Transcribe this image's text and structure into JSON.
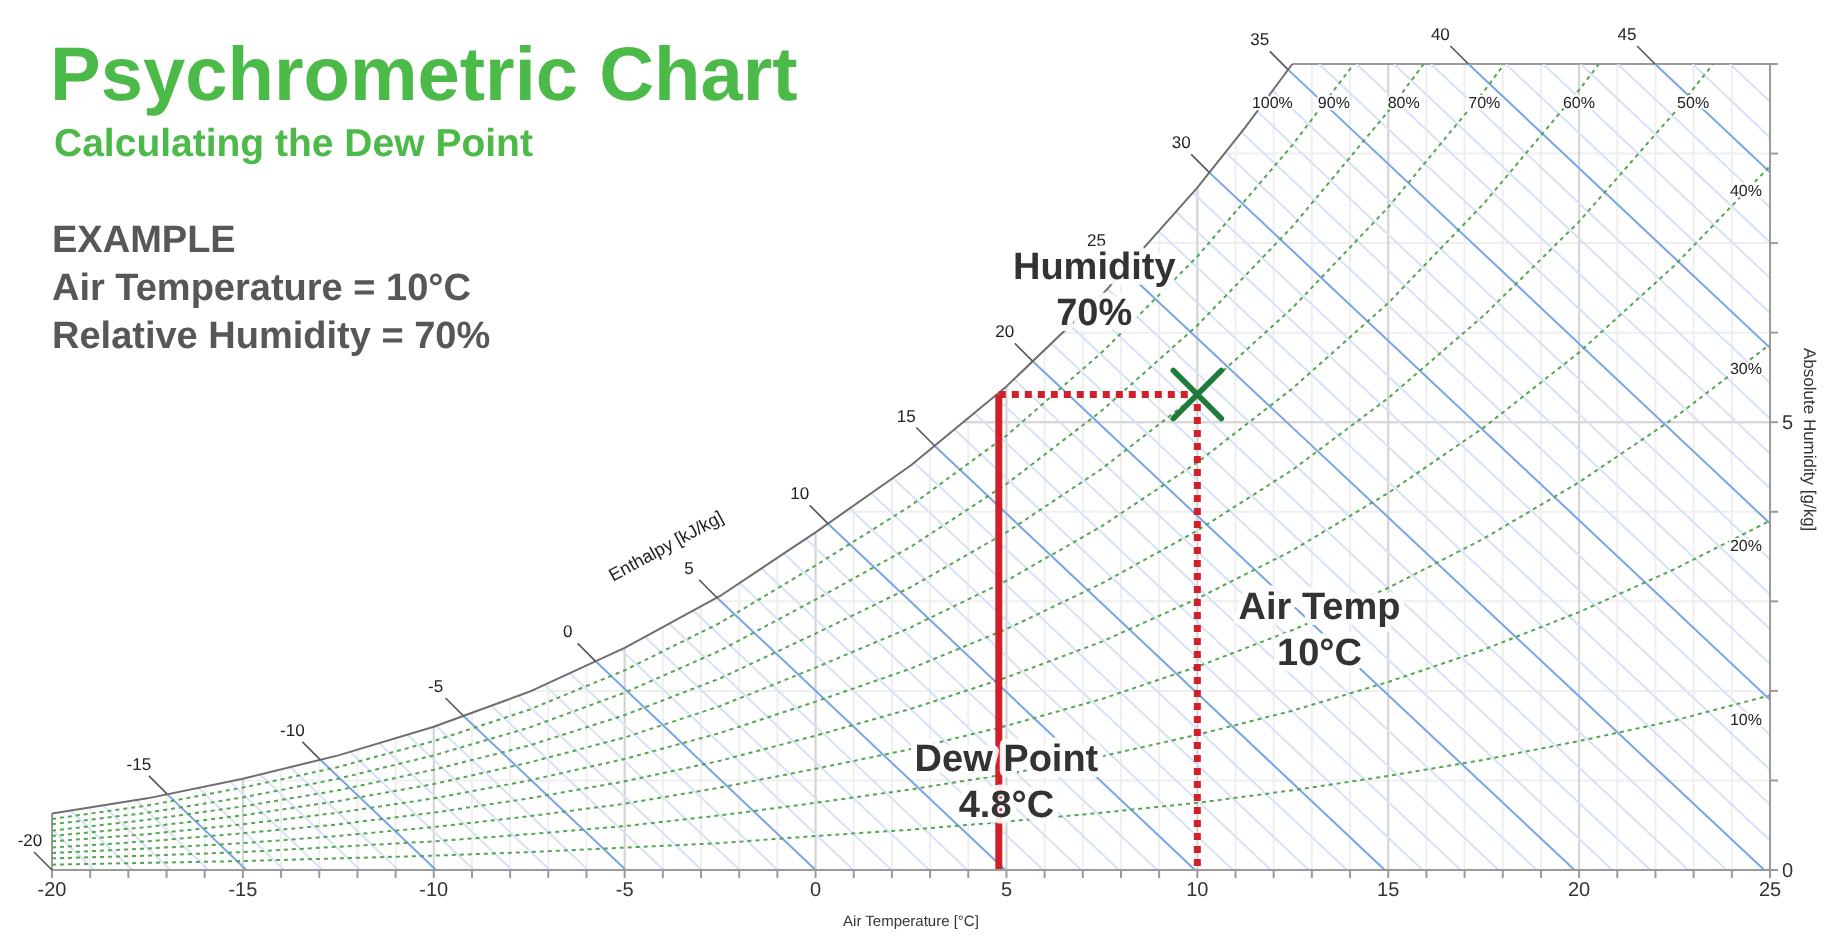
{
  "chart_data": {
    "type": "line",
    "title": "Psychrometric Chart",
    "subtitle": "Calculating the Dew Point",
    "xlabel": "Air Temperature [°C]",
    "ylabel": "Absolute Humidity [g/kg]",
    "xlim": [
      -20,
      25
    ],
    "ylim": [
      0,
      9
    ],
    "xticks": [
      -20,
      {
        "value": -19,
        "label": null
      },
      {
        "value": -18,
        "label": null
      },
      {
        "value": -17,
        "label": null
      },
      {
        "value": -16,
        "label": null
      },
      -15,
      {
        "value": -14,
        "label": null
      },
      {
        "value": -13,
        "label": null
      },
      {
        "value": -12,
        "label": null
      },
      {
        "value": -11,
        "label": null
      },
      -10,
      {
        "value": -9,
        "label": null
      },
      {
        "value": -8,
        "label": null
      },
      {
        "value": -7,
        "label": null
      },
      {
        "value": -6,
        "label": null
      },
      -5,
      {
        "value": -4,
        "label": null
      },
      {
        "value": -3,
        "label": null
      },
      {
        "value": -2,
        "label": null
      },
      {
        "value": -1,
        "label": null
      },
      0,
      {
        "value": 1,
        "label": null
      },
      {
        "value": 2,
        "label": null
      },
      {
        "value": 3,
        "label": null
      },
      {
        "value": 4,
        "label": null
      },
      5,
      {
        "value": 6,
        "label": null
      },
      {
        "value": 7,
        "label": null
      },
      {
        "value": 8,
        "label": null
      },
      {
        "value": 9,
        "label": null
      },
      10,
      {
        "value": 11,
        "label": null
      },
      {
        "value": 12,
        "label": null
      },
      {
        "value": 13,
        "label": null
      },
      {
        "value": 14,
        "label": null
      },
      15,
      {
        "value": 16,
        "label": null
      },
      {
        "value": 17,
        "label": null
      },
      {
        "value": 18,
        "label": null
      },
      {
        "value": 19,
        "label": null
      },
      20,
      {
        "value": 21,
        "label": null
      },
      {
        "value": 22,
        "label": null
      },
      {
        "value": 23,
        "label": null
      },
      {
        "value": 24,
        "label": null
      },
      25
    ],
    "yticks": [
      0,
      {
        "value": 1,
        "label": null
      },
      {
        "value": 2,
        "label": null
      },
      {
        "value": 3,
        "label": null
      },
      {
        "value": 4,
        "label": null
      },
      5,
      {
        "value": 6,
        "label": null
      },
      {
        "value": 7,
        "label": null
      },
      {
        "value": 8,
        "label": null
      },
      {
        "value": 9,
        "label": null
      }
    ],
    "grid": true,
    "annotations": [
      "EXAMPLE\nAir Temperature = 10°C\nRelative Humidity = 70%",
      "Enthalpy [kJ/kg]",
      {
        "text": "Humidity\n70%",
        "x": 7.3,
        "y": 6.5
      },
      {
        "text": "Air Temp\n10°C",
        "x": 13.2,
        "y": 2.7
      },
      {
        "text": "Dew Point\n4.8°C",
        "x": 5.0,
        "y": 1.0
      },
      {
        "text": "-20",
        "x": -20,
        "y": 0
      }
    ],
    "series": [
      {
        "color": "#d6e2f5",
        "x": [
          -20,
          -18.89
        ],
        "values": [
          0.45,
          0
        ]
      },
      {
        "color": "#d6e2f5",
        "x": [
          -19.53,
          -17.89
        ],
        "values": [
          0.67,
          0
        ]
      },
      {
        "color": "#d6e2f5",
        "x": [
          -18.68,
          -16.9
        ],
        "values": [
          0.73,
          0
        ]
      },
      {
        "color": "#d6e2f5",
        "x": [
          -17.83,
          -15.9
        ],
        "values": [
          0.79,
          0
        ]
      },
      {
        "color": "#d6e2f5",
        "x": [
          -16.17,
          -13.92
        ],
        "values": [
          0.92,
          0
        ]
      },
      {
        "color": "#d6e2f5",
        "x": [
          -15.35,
          -12.92
        ],
        "values": [
          0.99,
          0
        ]
      },
      {
        "color": "#d6e2f5",
        "x": [
          -14.55,
          -11.93
        ],
        "values": [
          1.07,
          0
        ]
      },
      {
        "color": "#d6e2f5",
        "x": [
          -13.76,
          -10.93
        ],
        "values": [
          1.15,
          0
        ]
      },
      {
        "color": "#d6e2f5",
        "x": [
          -12.19,
          -8.95
        ],
        "values": [
          1.32,
          0
        ]
      },
      {
        "color": "#d6e2f5",
        "x": [
          -11.44,
          -7.95
        ],
        "values": [
          1.42,
          0
        ]
      },
      {
        "color": "#d6e2f5",
        "x": [
          -10.69,
          -6.96
        ],
        "values": [
          1.51,
          0
        ]
      },
      {
        "color": "#d6e2f5",
        "x": [
          -9.94,
          -5.96
        ],
        "values": [
          1.61,
          0
        ]
      },
      {
        "color": "#d6e2f5",
        "x": [
          -8.51,
          -3.98
        ],
        "values": [
          1.84,
          0
        ]
      },
      {
        "color": "#d6e2f5",
        "x": [
          -7.8,
          -2.98
        ],
        "values": [
          1.95,
          0
        ]
      },
      {
        "color": "#d6e2f5",
        "x": [
          -7.11,
          -1.99
        ],
        "values": [
          2.07,
          0
        ]
      },
      {
        "color": "#d6e2f5",
        "x": [
          -6.44,
          -0.99
        ],
        "values": [
          2.2,
          0
        ]
      },
      {
        "color": "#d6e2f5",
        "x": [
          -5.09,
          0.99
        ],
        "values": [
          2.46,
          0
        ]
      },
      {
        "color": "#d6e2f5",
        "x": [
          -4.46,
          1.99
        ],
        "values": [
          2.6,
          0
        ]
      },
      {
        "color": "#d6e2f5",
        "x": [
          -3.83,
          2.98
        ],
        "values": [
          2.75,
          0
        ]
      },
      {
        "color": "#d6e2f5",
        "x": [
          -3.21,
          3.98
        ],
        "values": [
          2.9,
          0
        ]
      },
      {
        "color": "#d6e2f5",
        "x": [
          -2.0,
          5.96
        ],
        "values": [
          3.21,
          0
        ]
      },
      {
        "color": "#d6e2f5",
        "x": [
          -1.42,
          6.96
        ],
        "values": [
          3.37,
          0
        ]
      },
      {
        "color": "#d6e2f5",
        "x": [
          -0.84,
          7.95
        ],
        "values": [
          3.54,
          0
        ]
      },
      {
        "color": "#d6e2f5",
        "x": [
          -0.26,
          8.95
        ],
        "values": [
          3.7,
          0
        ]
      },
      {
        "color": "#d6e2f5",
        "x": [
          0.89,
          10.93
        ],
        "values": [
          4.04,
          0
        ]
      },
      {
        "color": "#d6e2f5",
        "x": [
          1.45,
          11.93
        ],
        "values": [
          4.21,
          0
        ]
      },
      {
        "color": "#d6e2f5",
        "x": [
          2.02,
          12.92
        ],
        "values": [
          4.38,
          0
        ]
      },
      {
        "color": "#d6e2f5",
        "x": [
          2.58,
          13.92
        ],
        "values": [
          4.55,
          0
        ]
      },
      {
        "color": "#d6e2f5",
        "x": [
          3.64,
          15.9
        ],
        "values": [
          4.92,
          0
        ]
      },
      {
        "color": "#d6e2f5",
        "x": [
          4.17,
          16.9
        ],
        "values": [
          5.1,
          0
        ]
      },
      {
        "color": "#d6e2f5",
        "x": [
          4.69,
          17.89
        ],
        "values": [
          5.29,
          0
        ]
      },
      {
        "color": "#d6e2f5",
        "x": [
          5.2,
          18.89
        ],
        "values": [
          5.48,
          0
        ]
      },
      {
        "color": "#d6e2f5",
        "x": [
          6.18,
          20.87
        ],
        "values": [
          5.88,
          0
        ]
      },
      {
        "color": "#d6e2f5",
        "x": [
          6.67,
          21.87
        ],
        "values": [
          6.08,
          0
        ]
      },
      {
        "color": "#d6e2f5",
        "x": [
          7.16,
          22.86
        ],
        "values": [
          6.28,
          0
        ]
      },
      {
        "color": "#d6e2f5",
        "x": [
          7.64,
          23.86
        ],
        "values": [
          6.49,
          0
        ]
      },
      {
        "color": "#d6e2f5",
        "x": [
          8.54,
          25
        ],
        "values": [
          6.92,
          0.33
        ]
      },
      {
        "color": "#d6e2f5",
        "x": [
          8.99,
          25
        ],
        "values": [
          7.13,
          0.73
        ]
      },
      {
        "color": "#d6e2f5",
        "x": [
          9.44,
          25
        ],
        "values": [
          7.35,
          1.12
        ]
      },
      {
        "color": "#d6e2f5",
        "x": [
          9.89,
          25
        ],
        "values": [
          7.56,
          1.51
        ]
      },
      {
        "color": "#d6e2f5",
        "x": [
          10.72,
          25
        ],
        "values": [
          8.02,
          2.3
        ]
      },
      {
        "color": "#d6e2f5",
        "x": [
          11.13,
          25
        ],
        "values": [
          8.25,
          2.69
        ]
      },
      {
        "color": "#d6e2f5",
        "x": [
          11.55,
          25
        ],
        "values": [
          8.48,
          3.08
        ]
      },
      {
        "color": "#d6e2f5",
        "x": [
          11.96,
          25
        ],
        "values": [
          8.71,
          3.47
        ]
      },
      {
        "color": "#d6e2f5",
        "x": [
          13.19,
          25
        ],
        "values": [
          9,
          4.26
        ]
      },
      {
        "color": "#d6e2f5",
        "x": [
          14.17,
          25
        ],
        "values": [
          9,
          4.65
        ]
      },
      {
        "color": "#d6e2f5",
        "x": [
          15.15,
          25
        ],
        "values": [
          9,
          5.04
        ]
      },
      {
        "color": "#d6e2f5",
        "x": [
          16.12,
          25
        ],
        "values": [
          9,
          5.44
        ]
      },
      {
        "color": "#d6e2f5",
        "x": [
          18.08,
          25
        ],
        "values": [
          9,
          6.22
        ]
      },
      {
        "color": "#d6e2f5",
        "x": [
          19.06,
          25
        ],
        "values": [
          9,
          6.61
        ]
      },
      {
        "color": "#d6e2f5",
        "x": [
          20.04,
          25
        ],
        "values": [
          9,
          7.01
        ]
      },
      {
        "color": "#d6e2f5",
        "x": [
          21.01,
          25
        ],
        "values": [
          9,
          7.4
        ]
      },
      {
        "color": "#d6e2f5",
        "x": [
          22.97,
          25
        ],
        "values": [
          9,
          8.18
        ]
      },
      {
        "color": "#d6e2f5",
        "x": [
          23.95,
          25
        ],
        "values": [
          9,
          8.58
        ]
      },
      {
        "name": "-15",
        "color": "#78a4e6",
        "x": [
          -16.99,
          -14.91
        ],
        "values": [
          0.85,
          0
        ]
      },
      {
        "name": "-10",
        "color": "#78a4e6",
        "x": [
          -12.97,
          -9.94
        ],
        "values": [
          1.23,
          0
        ]
      },
      {
        "name": "-5",
        "color": "#78a4e6",
        "x": [
          -9.22,
          -4.97
        ],
        "values": [
          1.72,
          0
        ]
      },
      {
        "name": "0",
        "color": "#78a4e6",
        "x": [
          -5.76,
          0
        ],
        "values": [
          2.33,
          0
        ]
      },
      {
        "name": "5",
        "color": "#78a4e6",
        "x": [
          -2.58,
          4.97
        ],
        "values": [
          3.04,
          0
        ]
      },
      {
        "name": "10",
        "color": "#78a4e6",
        "x": [
          0.32,
          9.94
        ],
        "values": [
          3.87,
          0
        ]
      },
      {
        "name": "15",
        "color": "#78a4e6",
        "x": [
          3.11,
          14.91
        ],
        "values": [
          4.74,
          0
        ]
      },
      {
        "name": "20",
        "color": "#78a4e6",
        "x": [
          5.69,
          19.88
        ],
        "values": [
          5.68,
          0
        ]
      },
      {
        "name": "25",
        "color": "#78a4e6",
        "x": [
          8.09,
          24.85
        ],
        "values": [
          6.7,
          0
        ]
      },
      {
        "name": "30",
        "color": "#78a4e6",
        "x": [
          10.31,
          25
        ],
        "values": [
          7.79,
          1.9
        ]
      },
      {
        "name": "35",
        "color": "#78a4e6",
        "x": [
          12.37,
          25
        ],
        "values": [
          8.94,
          3.87
        ]
      },
      {
        "name": "40",
        "color": "#78a4e6",
        "x": [
          17.1,
          25
        ],
        "values": [
          9,
          5.83
        ]
      },
      {
        "name": "45",
        "color": "#78a4e6",
        "x": [
          21.99,
          25
        ],
        "values": [
          9,
          7.79
        ]
      },
      {
        "name": "10%",
        "color": "#55a654",
        "line_style": "dotted",
        "x": [
          -20,
          -17.5,
          -15,
          -12.5,
          -10,
          -7.5,
          -5,
          -2.5,
          0,
          2.5,
          5,
          7.5,
          10,
          12.5,
          15,
          17.5,
          20,
          22.5,
          25
        ],
        "values": [
          0.06,
          0.08,
          0.1,
          0.13,
          0.16,
          0.2,
          0.25,
          0.3,
          0.38,
          0.45,
          0.54,
          0.64,
          0.75,
          0.89,
          1.05,
          1.23,
          1.44,
          1.67,
          1.95
        ]
      },
      {
        "name": "20%",
        "color": "#55a654",
        "line_style": "dotted",
        "x": [
          -20,
          -17.5,
          -15,
          -12.5,
          -10,
          -7.5,
          -5,
          -2.5,
          0,
          2.5,
          5,
          7.5,
          10,
          12.5,
          15,
          17.5,
          20,
          22.5,
          25
        ],
        "values": [
          0.13,
          0.16,
          0.2,
          0.26,
          0.32,
          0.4,
          0.49,
          0.61,
          0.75,
          0.9,
          1.07,
          1.27,
          1.51,
          1.78,
          2.1,
          2.46,
          2.88,
          3.36,
          3.9
        ]
      },
      {
        "name": "30%",
        "color": "#55a654",
        "line_style": "dotted",
        "x": [
          -20,
          -17.5,
          -15,
          -12.5,
          -10,
          -7.5,
          -5,
          -2.5,
          0,
          2.5,
          5,
          7.5,
          10,
          12.5,
          15,
          17.5,
          20,
          22.5,
          25
        ],
        "values": [
          0.19,
          0.24,
          0.3,
          0.38,
          0.48,
          0.6,
          0.74,
          0.92,
          1.13,
          1.35,
          1.61,
          1.91,
          2.27,
          2.68,
          3.15,
          3.7,
          4.33,
          5.05,
          5.87
        ]
      },
      {
        "name": "40%",
        "color": "#55a654",
        "line_style": "dotted",
        "x": [
          -20,
          -17.5,
          -15,
          -12.5,
          -10,
          -7.5,
          -5,
          -2.5,
          0,
          2.5,
          5,
          7.5,
          10,
          12.5,
          15,
          17.5,
          20,
          22.5,
          25
        ],
        "values": [
          0.25,
          0.32,
          0.41,
          0.51,
          0.64,
          0.8,
          0.99,
          1.22,
          1.5,
          1.8,
          2.15,
          2.55,
          3.03,
          3.57,
          4.21,
          4.94,
          5.78,
          6.75,
          7.86
        ]
      },
      {
        "name": "50%",
        "color": "#55a654",
        "line_style": "dotted",
        "x": [
          -20,
          -17.5,
          -15,
          -12.5,
          -10,
          -7.5,
          -5,
          -2.5,
          0,
          2.5,
          5,
          7.5,
          10,
          12.5,
          15,
          17.5,
          20,
          22.5,
          23.51
        ],
        "values": [
          0.32,
          0.4,
          0.51,
          0.64,
          0.8,
          1.0,
          1.24,
          1.53,
          1.88,
          2.25,
          2.69,
          3.2,
          3.79,
          4.47,
          5.27,
          6.19,
          7.24,
          8.46,
          9
        ]
      },
      {
        "name": "60%",
        "color": "#55a654",
        "line_style": "dotted",
        "x": [
          -20,
          -17.5,
          -15,
          -12.5,
          -10,
          -7.5,
          -5,
          -2.5,
          0,
          2.5,
          5,
          7.5,
          10,
          12.5,
          15,
          17.5,
          20,
          20.52
        ],
        "values": [
          0.38,
          0.48,
          0.61,
          0.77,
          0.96,
          1.2,
          1.48,
          1.83,
          2.26,
          2.71,
          3.23,
          3.84,
          4.55,
          5.38,
          6.33,
          7.44,
          8.71,
          9
        ]
      },
      {
        "name": "70%",
        "color": "#55a654",
        "line_style": "dotted",
        "x": [
          -20,
          -17.5,
          -15,
          -12.5,
          -10,
          -7.5,
          -5,
          -2.5,
          0,
          2.5,
          5,
          7.5,
          10,
          12.5,
          15,
          17.5,
          18.04
        ],
        "values": [
          0.44,
          0.56,
          0.71,
          0.89,
          1.12,
          1.39,
          1.73,
          2.14,
          2.64,
          3.16,
          3.77,
          4.48,
          5.31,
          6.28,
          7.4,
          8.69,
          9
        ]
      },
      {
        "name": "80%",
        "color": "#55a654",
        "line_style": "dotted",
        "x": [
          -20,
          -17.5,
          -15,
          -12.5,
          -10,
          -7.5,
          -5,
          -2.5,
          0,
          2.5,
          5,
          7.5,
          10,
          12.5,
          15,
          15.93
        ],
        "values": [
          0.51,
          0.64,
          0.81,
          1.02,
          1.28,
          1.59,
          1.98,
          2.45,
          3.02,
          3.61,
          4.31,
          5.13,
          6.08,
          7.19,
          8.47,
          9
        ]
      },
      {
        "name": "90%",
        "color": "#55a654",
        "line_style": "dotted",
        "x": [
          -20,
          -17.5,
          -15,
          -12.5,
          -10,
          -7.5,
          -5,
          -2.5,
          0,
          2.5,
          5,
          7.5,
          10,
          12.5,
          14.1
        ],
        "values": [
          0.57,
          0.72,
          0.92,
          1.15,
          1.44,
          1.79,
          2.23,
          2.76,
          3.4,
          4.07,
          4.85,
          5.78,
          6.85,
          8.1,
          9
        ]
      },
      {
        "name": "100%",
        "color": "#6e6e6e",
        "x": [
          -20,
          -17.5,
          -15,
          -12.5,
          -10,
          -7.5,
          -5,
          -2.5,
          0,
          2.5,
          5,
          7.5,
          10,
          11.25,
          12.49
        ],
        "values": [
          0.63,
          0.8,
          1.02,
          1.28,
          1.6,
          1.99,
          2.48,
          3.06,
          3.77,
          4.52,
          5.4,
          6.42,
          7.62,
          8.29,
          9
        ]
      },
      {
        "color": "#d0202a",
        "line_style": "solid",
        "x": [
          4.8,
          4.8
        ],
        "values": [
          0,
          5.31
        ]
      },
      {
        "color": "#d0202a",
        "line_style": "dotted",
        "x": [
          4.8,
          10,
          10
        ],
        "values": [
          5.31,
          5.31,
          0
        ]
      },
      {
        "type": "scatter",
        "color": "#1e7b3c",
        "marker": "cross",
        "x": [
          10
        ],
        "values": [
          5.31
        ]
      }
    ]
  }
}
